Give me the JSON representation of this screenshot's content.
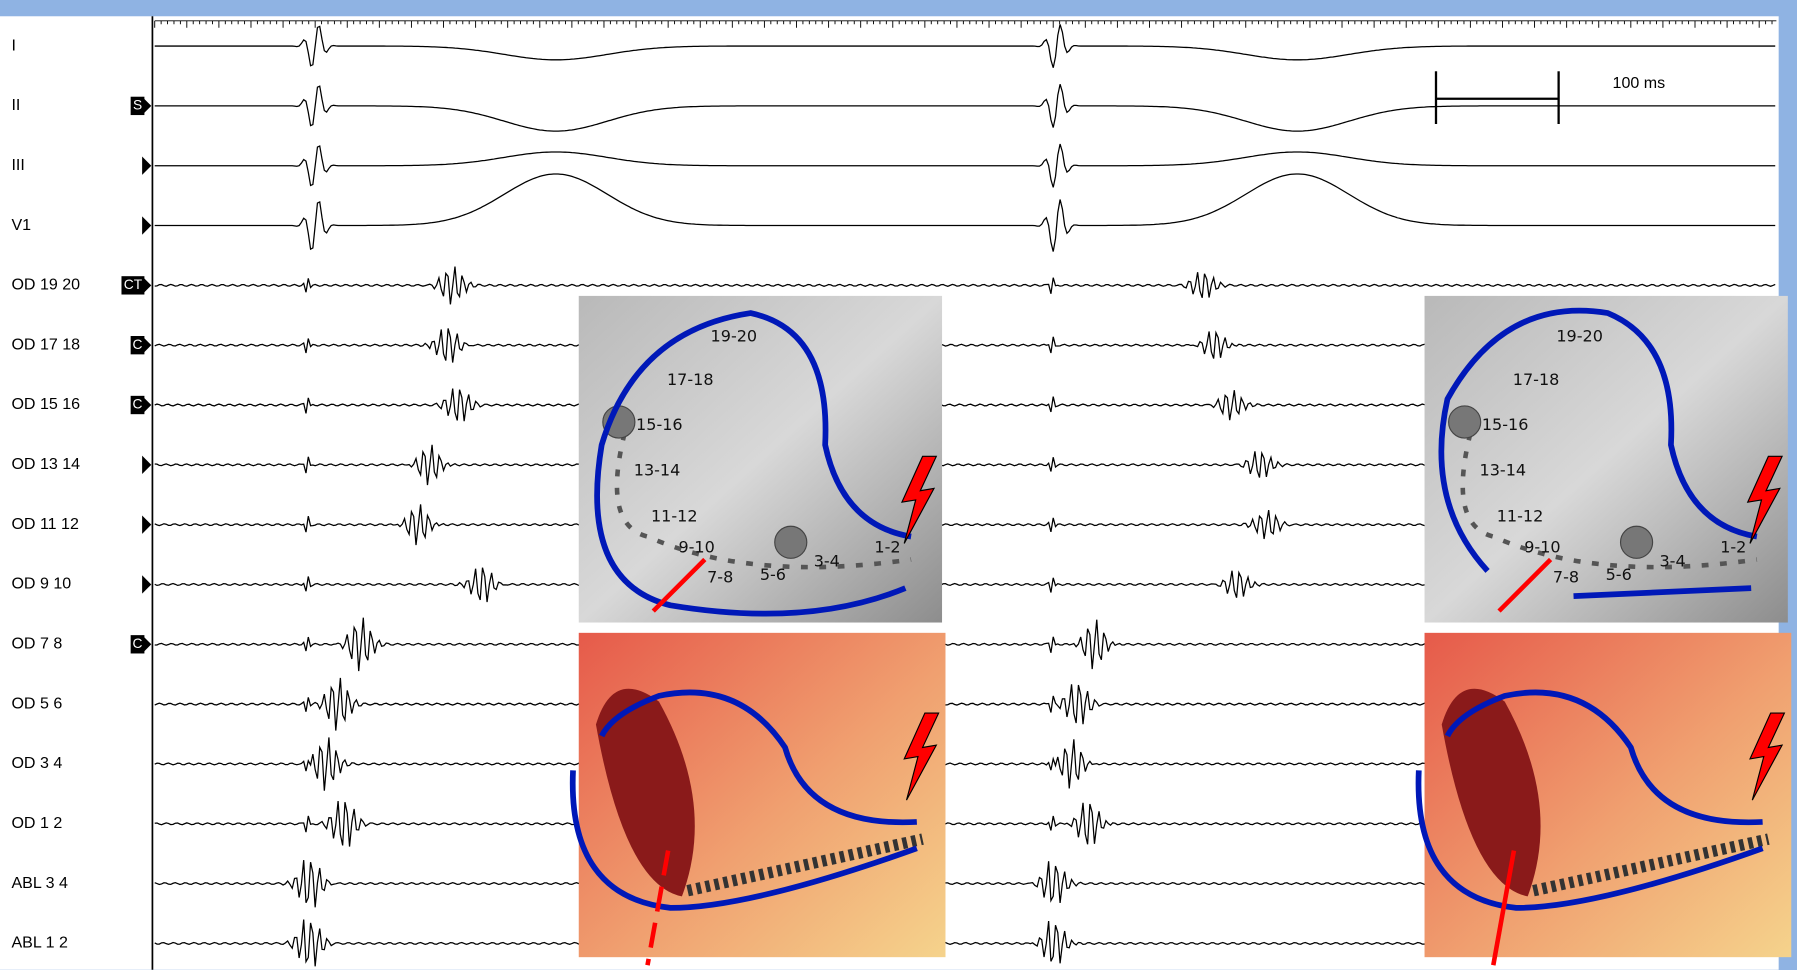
{
  "channels": [
    {
      "label": "I"
    },
    {
      "label": "II",
      "marker": "S"
    },
    {
      "label": "III"
    },
    {
      "label": "V1"
    },
    {
      "label": "OD 19 20",
      "marker": "CT"
    },
    {
      "label": "OD 17 18",
      "marker": "C"
    },
    {
      "label": "OD 15 16",
      "marker": "C"
    },
    {
      "label": "OD 13 14"
    },
    {
      "label": "OD  11 12"
    },
    {
      "label": "OD 9 10"
    },
    {
      "label": "OD 7 8",
      "marker": "C"
    },
    {
      "label": "OD 5 6"
    },
    {
      "label": "OD 3 4"
    },
    {
      "label": "OD 1 2"
    },
    {
      "label": "ABL 3 4"
    },
    {
      "label": "ABL 1 2"
    }
  ],
  "scale_bar": {
    "label": "100 ms"
  },
  "panels": [
    {
      "electrodes": [
        "19-20",
        "17-18",
        "15-16",
        "13-14",
        "11-12",
        "9-10",
        "7-8",
        "5-6",
        "3-4",
        "1-2"
      ]
    },
    {
      "electrodes": [
        "19-20",
        "17-18",
        "15-16",
        "13-14",
        "11-12",
        "9-10",
        "7-8",
        "5-6",
        "3-4",
        "1-2"
      ]
    }
  ]
}
